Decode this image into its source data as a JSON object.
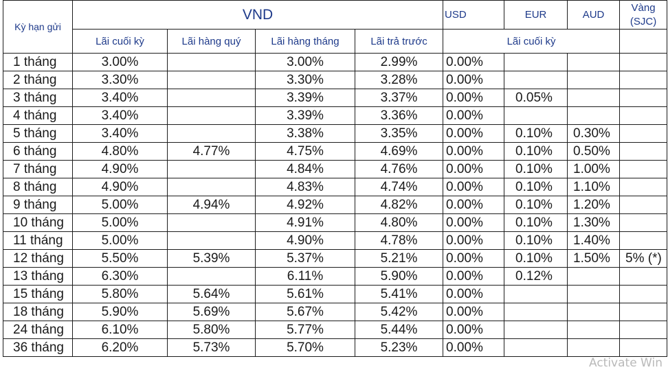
{
  "header": {
    "term_label": "Kỳ hạn gửi",
    "vnd_label": "VND",
    "usd_label": "USD",
    "eur_label": "EUR",
    "aud_label": "AUD",
    "gold_label_line1": "Vàng",
    "gold_label_line2": "(SJC)",
    "vnd_sub": [
      "Lãi cuối kỳ",
      "Lãi hàng quý",
      "Lãi hàng tháng",
      "Lãi trả trước"
    ],
    "foreign_sub": "Lãi cuối kỳ"
  },
  "columns": [
    "term",
    "vnd_end",
    "vnd_quarterly",
    "vnd_monthly",
    "vnd_prepaid",
    "usd",
    "eur",
    "aud",
    "gold"
  ],
  "rows": [
    {
      "term": "1 tháng",
      "vnd_end": "3.00%",
      "vnd_quarterly": "",
      "vnd_monthly": "3.00%",
      "vnd_prepaid": "2.99%",
      "usd": "0.00%",
      "eur": "",
      "aud": "",
      "gold": ""
    },
    {
      "term": "2 tháng",
      "vnd_end": "3.30%",
      "vnd_quarterly": "",
      "vnd_monthly": "3.30%",
      "vnd_prepaid": "3.28%",
      "usd": "0.00%",
      "eur": "",
      "aud": "",
      "gold": ""
    },
    {
      "term": "3 tháng",
      "vnd_end": "3.40%",
      "vnd_quarterly": "",
      "vnd_monthly": "3.39%",
      "vnd_prepaid": "3.37%",
      "usd": "0.00%",
      "eur": "0.05%",
      "aud": "",
      "gold": ""
    },
    {
      "term": "4 tháng",
      "vnd_end": "3.40%",
      "vnd_quarterly": "",
      "vnd_monthly": "3.39%",
      "vnd_prepaid": "3.36%",
      "usd": "0.00%",
      "eur": "",
      "aud": "",
      "gold": ""
    },
    {
      "term": "5 tháng",
      "vnd_end": "3.40%",
      "vnd_quarterly": "",
      "vnd_monthly": "3.38%",
      "vnd_prepaid": "3.35%",
      "usd": "0.00%",
      "eur": "0.10%",
      "aud": "0.30%",
      "gold": ""
    },
    {
      "term": "6 tháng",
      "vnd_end": "4.80%",
      "vnd_quarterly": "4.77%",
      "vnd_monthly": "4.75%",
      "vnd_prepaid": "4.69%",
      "usd": "0.00%",
      "eur": "0.10%",
      "aud": "0.50%",
      "gold": ""
    },
    {
      "term": "7 tháng",
      "vnd_end": "4.90%",
      "vnd_quarterly": "",
      "vnd_monthly": "4.84%",
      "vnd_prepaid": "4.76%",
      "usd": "0.00%",
      "eur": "0.10%",
      "aud": "1.00%",
      "gold": ""
    },
    {
      "term": "8 tháng",
      "vnd_end": "4.90%",
      "vnd_quarterly": "",
      "vnd_monthly": "4.83%",
      "vnd_prepaid": "4.74%",
      "usd": "0.00%",
      "eur": "0.10%",
      "aud": "1.10%",
      "gold": ""
    },
    {
      "term": "9 tháng",
      "vnd_end": "5.00%",
      "vnd_quarterly": "4.94%",
      "vnd_monthly": "4.92%",
      "vnd_prepaid": "4.82%",
      "usd": "0.00%",
      "eur": "0.10%",
      "aud": "1.20%",
      "gold": ""
    },
    {
      "term": "10 tháng",
      "vnd_end": "5.00%",
      "vnd_quarterly": "",
      "vnd_monthly": "4.91%",
      "vnd_prepaid": "4.80%",
      "usd": "0.00%",
      "eur": "0.10%",
      "aud": "1.30%",
      "gold": ""
    },
    {
      "term": "11 tháng",
      "vnd_end": "5.00%",
      "vnd_quarterly": "",
      "vnd_monthly": "4.90%",
      "vnd_prepaid": "4.78%",
      "usd": "0.00%",
      "eur": "0.10%",
      "aud": "1.40%",
      "gold": ""
    },
    {
      "term": "12 tháng",
      "vnd_end": "5.50%",
      "vnd_quarterly": "5.39%",
      "vnd_monthly": "5.37%",
      "vnd_prepaid": "5.21%",
      "usd": "0.00%",
      "eur": "0.10%",
      "aud": "1.50%",
      "gold": "5% (*)"
    },
    {
      "term": "13 tháng",
      "vnd_end": "6.30%",
      "vnd_quarterly": "",
      "vnd_monthly": "6.11%",
      "vnd_prepaid": "5.90%",
      "usd": "0.00%",
      "eur": "0.12%",
      "aud": "",
      "gold": ""
    },
    {
      "term": "15 tháng",
      "vnd_end": "5.80%",
      "vnd_quarterly": "5.64%",
      "vnd_monthly": "5.61%",
      "vnd_prepaid": "5.41%",
      "usd": "0.00%",
      "eur": "",
      "aud": "",
      "gold": ""
    },
    {
      "term": "18 tháng",
      "vnd_end": "5.90%",
      "vnd_quarterly": "5.69%",
      "vnd_monthly": "5.67%",
      "vnd_prepaid": "5.42%",
      "usd": "0.00%",
      "eur": "",
      "aud": "",
      "gold": ""
    },
    {
      "term": "24 tháng",
      "vnd_end": "6.10%",
      "vnd_quarterly": "5.80%",
      "vnd_monthly": "5.77%",
      "vnd_prepaid": "5.44%",
      "usd": "0.00%",
      "eur": "",
      "aud": "",
      "gold": ""
    },
    {
      "term": "36  tháng",
      "vnd_end": "6.20%",
      "vnd_quarterly": "5.73%",
      "vnd_monthly": "5.70%",
      "vnd_prepaid": "5.23%",
      "usd": "0.00%",
      "eur": "",
      "aud": "",
      "gold": ""
    }
  ],
  "overlay": {
    "watermark": "Activate Win"
  },
  "colors": {
    "header_text": "#1e3a8a",
    "body_text": "#1a1a1a",
    "border": "#1c1c1c",
    "watermark": "#b9b9b9"
  }
}
